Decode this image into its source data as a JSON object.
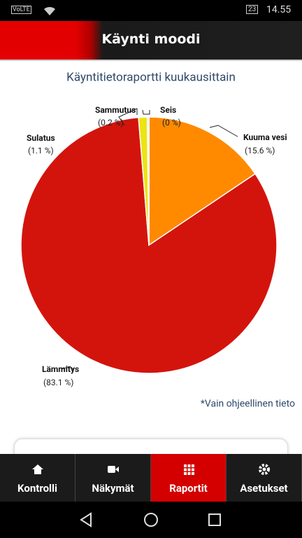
{
  "status_bar": {
    "network": "VoLTE",
    "battery": "23",
    "time": "14.55"
  },
  "header": {
    "title": "Käynti moodi"
  },
  "chart_data": {
    "type": "pie",
    "title": "Käyntitietoraportti kuukausittain",
    "categories": [
      "Kuuma vesi",
      "Lämmitys",
      "Sulatus",
      "Sammutus",
      "Seis"
    ],
    "values": [
      15.6,
      83.1,
      1.1,
      0.2,
      0
    ],
    "value_labels": [
      "(15.6 %)",
      "(83.1 %)",
      "(1.1 %)",
      "(0.2 %)",
      "(0 %)"
    ],
    "colors": [
      "#ff8a00",
      "#d3140c",
      "#ece413",
      "#c8c8c8",
      "#ffffff"
    ]
  },
  "note": "*Vain ohjeellinen tieto",
  "nav": {
    "tabs": [
      "Kontrolli",
      "Näkymät",
      "Raportit",
      "Asetukset"
    ],
    "active": 2
  }
}
